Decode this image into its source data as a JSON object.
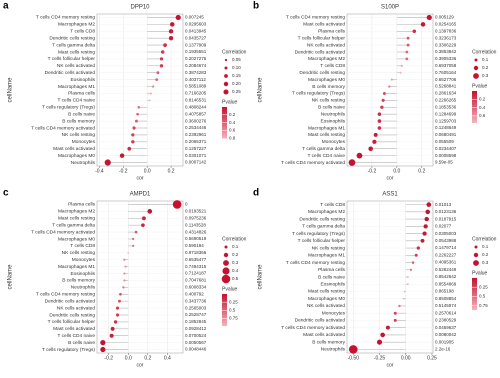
{
  "chart_data": [
    {
      "type": "lollipop",
      "panel_label": "a",
      "title": "DPP10",
      "xlabel": "cor",
      "ylabel": "cellName",
      "categories": [
        "T cells CD4 memory resting",
        "Macrophages M2",
        "T cells CD8",
        "Dendritic cells resting",
        "T cells gamma delta",
        "Mast cells resting",
        "T cells follicular helper",
        "NK cells activated",
        "Dendritic cells activated",
        "Eosinophils",
        "Macrophages M1",
        "Plasma cells",
        "T cells CD4 naive",
        "T cells regulatory (Tregs)",
        "B cells naive",
        "B cells memory",
        "T cells CD4 memory activated",
        "NK cells resting",
        "Monocytes",
        "Mast cells activated",
        "Macrophages M0",
        "Neutrophils"
      ],
      "values": [
        0.26,
        0.21,
        0.2,
        0.2,
        0.15,
        0.13,
        0.12,
        0.12,
        0.09,
        0.08,
        0.05,
        0.03,
        0.02,
        -0.07,
        -0.08,
        -0.09,
        -0.11,
        -0.12,
        -0.12,
        -0.15,
        -0.21,
        -0.33
      ],
      "pvalues": [
        0.007245,
        0.0295603,
        0.0413945,
        0.0435727,
        0.1377909,
        0.1935551,
        0.2027276,
        0.2084674,
        0.3874283,
        0.4037112,
        0.5851089,
        0.7166205,
        0.8146531,
        0.4808244,
        0.4075857,
        0.3600276,
        0.2534446,
        0.2392961,
        0.2065371,
        0.1257227,
        0.0301071,
        0.0007142
      ],
      "pvalue_labels": [
        "0.007245",
        "0.0295603",
        "0.0413945",
        "0.0435727",
        "0.1377909",
        "0.1935551",
        "0.2027276",
        "0.2084674",
        "0.3874283",
        "0.4037112",
        "0.5851089",
        "0.7166205",
        "0.8146531",
        "0.4808244",
        "0.4075857",
        "0.3600276",
        "0.2534446",
        "0.2392961",
        "0.2065371",
        "0.1257227",
        "0.0301071",
        "0.0007142"
      ],
      "xlim": [
        -0.42,
        0.3
      ],
      "xticks": [
        {
          "value": -0.4,
          "label": "-0.4"
        },
        {
          "value": -0.2,
          "label": "-0.2"
        },
        {
          "value": 0,
          "label": "0.0"
        },
        0.2
      ],
      "size_legend_title": "Correlation",
      "size_legend": [
        0.05,
        {
          "value": 0.1,
          "label": "0.10"
        },
        0.15,
        {
          "value": 0.2,
          "label": "0.20"
        },
        0.25
      ],
      "color_legend_title": "Pvalue",
      "plim": [
        0,
        0.82
      ],
      "pticks": [
        0.2,
        0.4,
        0.6,
        0.8
      ],
      "colors": [
        "#c4122f",
        "#f6b3bd"
      ],
      "stem_color": "#b5b5b5",
      "grid": true
    },
    {
      "type": "lollipop",
      "panel_label": "b",
      "title": "S100P",
      "xlabel": "cor",
      "ylabel": "cellName",
      "categories": [
        "T cells CD4 memory resting",
        "Mast cells activated",
        "Plasma cells",
        "T cells follicular helper",
        "NK cells activated",
        "Dendritic cells activated",
        "Macrophages M2",
        "T cells CD8",
        "Dendritic cells resting",
        "Macrophages M0",
        "B cells memory",
        "T cells regulatory (Tregs)",
        "NK cells resting",
        "B cells naive",
        "Neutrophils",
        "Eosinophils",
        "Macrophages M1",
        "Mast cells resting",
        "Monocytes",
        "T cells gamma delta",
        "T cells CD4 naive",
        "T cells CD4 memory activated"
      ],
      "values": [
        0.26,
        0.21,
        0.14,
        0.09,
        0.09,
        0.08,
        0.08,
        0.04,
        0.03,
        -0.04,
        -0.06,
        -0.1,
        -0.11,
        -0.12,
        -0.14,
        -0.14,
        -0.14,
        -0.17,
        -0.18,
        -0.21,
        -0.3,
        -0.36
      ],
      "pvalues": [
        0.005129,
        0.0254165,
        0.1397836,
        0.3236173,
        0.3306229,
        0.3853842,
        0.3905336,
        0.6937058,
        0.7605164,
        0.6527706,
        0.5268841,
        0.2861634,
        0.2266265,
        0.1853536,
        0.1284699,
        0.1259703,
        0.1248649,
        0.0680491,
        0.055509,
        0.0234407,
        0.0008598,
        9.59e-05
      ],
      "pvalue_labels": [
        "0.005129",
        "0.0254165",
        "0.1397836",
        "0.3236173",
        "0.3306229",
        "0.3853842",
        "0.3905336",
        "0.6937058",
        "0.7605164",
        "0.6527706",
        "0.5268841",
        "0.2861634",
        "0.2266265",
        "0.1853536",
        "0.1284699",
        "0.1259703",
        "0.1248649",
        "0.0680491",
        "0.055509",
        "0.0234407",
        "0.0008598",
        "9.59e-05"
      ],
      "xlim": [
        -0.4,
        0.29
      ],
      "xticks": [
        {
          "value": -0.2,
          "label": "-0.2"
        },
        {
          "value": 0,
          "label": "0.0"
        },
        0.2
      ],
      "size_legend_title": "Correlation",
      "size_legend": [
        0.1,
        0.2,
        0.3
      ],
      "color_legend_title": "Pvalue",
      "plim": [
        0,
        0.77
      ],
      "pticks": [
        0.2,
        0.4,
        0.6
      ],
      "colors": [
        "#c4122f",
        "#f6b3bd"
      ],
      "stem_color": "#b5b5b5",
      "grid": true
    },
    {
      "type": "lollipop",
      "panel_label": "c",
      "title": "AMPD1",
      "xlabel": "cor",
      "ylabel": "cellName",
      "categories": [
        "Plasma cells",
        "Macrophages M2",
        "Mast cells resting",
        "T cells gamma delta",
        "T cells CD4 memory activated",
        "Macrophages M0",
        "T cells CD8",
        "NK cells resting",
        "Monocytes",
        "Macrophages M1",
        "Eosinophils",
        "B cells memory",
        "Neutrophils",
        "T cells CD4 memory resting",
        "Dendritic cells activated",
        "NK cells activated",
        "Dendritic cells resting",
        "T cells follicular helper",
        "Mast cells activated",
        "T cells CD4 naive",
        "B cells naive",
        "T cells regulatory (Tregs)"
      ],
      "values": [
        0.5,
        0.22,
        0.16,
        0.15,
        0.08,
        0.05,
        0.05,
        0.0,
        -0.04,
        -0.03,
        -0.04,
        -0.04,
        -0.05,
        -0.08,
        -0.09,
        -0.11,
        -0.11,
        -0.13,
        -0.16,
        -0.17,
        -0.26,
        -0.26
      ],
      "pvalues": [
        0,
        0.0193521,
        0.0975236,
        0.1143528,
        0.4314826,
        0.5690519,
        0.590194,
        0.9718366,
        0.6535477,
        0.7494315,
        0.7124187,
        0.7047681,
        0.6008334,
        0.400792,
        0.3437736,
        0.2565003,
        0.2528747,
        0.1852845,
        0.0928412,
        0.0700524,
        0.0050567,
        0.0048446
      ],
      "pvalue_labels": [
        "0",
        "0.0193521",
        "0.0975236",
        "0.1143528",
        "0.4314826",
        "0.5690519",
        "0.590194",
        "0.9718366",
        "0.6535477",
        "0.7494315",
        "0.7124187",
        "0.7047681",
        "0.6008334",
        "0.400792",
        "0.3437736",
        "0.2565003",
        "0.2528747",
        "0.1852845",
        "0.0928412",
        "0.0700524",
        "0.0050567",
        "0.0048446"
      ],
      "xlim": [
        -0.32,
        0.56
      ],
      "xticks": [
        {
          "value": -0.2,
          "label": "-0.2"
        },
        {
          "value": 0,
          "label": "0.0"
        },
        0.2,
        0.4
      ],
      "size_legend_title": "Correlation",
      "size_legend": [
        0.1,
        0.2,
        0.3,
        0.4,
        0.5
      ],
      "color_legend_title": "Pvalue",
      "plim": [
        0,
        0.98
      ],
      "pticks": [
        0.25,
        0.5,
        0.75
      ],
      "colors": [
        "#c4122f",
        "#f6b3bd"
      ],
      "stem_color": "#b5b5b5",
      "grid": true
    },
    {
      "type": "lollipop",
      "panel_label": "d",
      "title": "ASS1",
      "xlabel": "cor",
      "ylabel": "cellName",
      "categories": [
        "T cells CD8",
        "Macrophages M2",
        "Dendritic cells resting",
        "T cells gamma delta",
        "T cells regulatory (Tregs)",
        "T cells follicular helper",
        "NK cells resting",
        "Macrophages M1",
        "T cells CD4 memory resting",
        "Plasma cells",
        "B cells naive",
        "Eosinophils",
        "Mast cells resting",
        "Macrophages M0",
        "NK cells activated",
        "Monocytes",
        "Dendritic cells activated",
        "T cells CD4 memory activated",
        "Mast cells activated",
        "B cells memory",
        "Neutrophils"
      ],
      "values": [
        0.22,
        0.21,
        0.2,
        0.19,
        0.18,
        0.16,
        0.12,
        0.1,
        0.07,
        0.05,
        0.02,
        0.02,
        -0.01,
        -0.02,
        -0.06,
        -0.1,
        -0.1,
        -0.17,
        -0.22,
        -0.25,
        -0.5
      ],
      "pvalues": [
        0.01013,
        0.0123136,
        0.0187915,
        0.02077,
        0.0305003,
        0.0543988,
        0.1479714,
        0.2262227,
        0.4095361,
        0.5282449,
        0.8542642,
        0.8554869,
        0.865198,
        0.8508854,
        0.5145974,
        0.2570614,
        0.2380529,
        0.0459637,
        0.0080042,
        0.001905,
        2.2e-16
      ],
      "pvalue_labels": [
        "0.01013",
        "0.0123136",
        "0.0187915",
        "0.02077",
        "0.0305003",
        "0.0543988",
        "0.1479714",
        "0.2262227",
        "0.4095361",
        "0.5282449",
        "0.8542642",
        "0.8554869",
        "0.865198",
        "0.8508854",
        "0.5145974",
        "0.2570614",
        "0.2380529",
        "0.0459637",
        "0.0080042",
        "0.001905",
        "2.2e-16"
      ],
      "xlim": [
        -0.56,
        0.26
      ],
      "xticks": [
        {
          "value": -0.5,
          "label": "-0.50"
        },
        {
          "value": -0.25,
          "label": "-0.25"
        },
        {
          "value": 0,
          "label": "0.00"
        },
        0.25
      ],
      "size_legend_title": "Correlation",
      "size_legend": [
        0.1,
        0.2,
        0.3
      ],
      "color_legend_title": "Pvalue",
      "plim": [
        0,
        0.87
      ],
      "pticks": [
        0.25,
        0.5,
        0.75
      ],
      "colors": [
        "#c4122f",
        "#f6b3bd"
      ],
      "stem_color": "#b5b5b5",
      "grid": true
    }
  ]
}
